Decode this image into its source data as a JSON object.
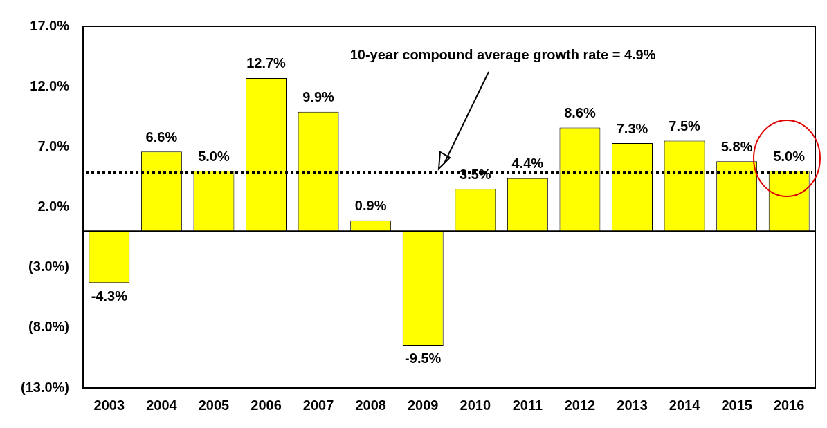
{
  "chart_data": {
    "type": "bar",
    "categories": [
      "2003",
      "2004",
      "2005",
      "2006",
      "2007",
      "2008",
      "2009",
      "2010",
      "2011",
      "2012",
      "2013",
      "2014",
      "2015",
      "2016"
    ],
    "values": [
      -4.3,
      6.6,
      5.0,
      12.7,
      9.9,
      0.9,
      -9.5,
      3.5,
      4.4,
      8.6,
      7.3,
      7.5,
      5.8,
      5.0
    ],
    "value_labels": [
      "-4.3%",
      "6.6%",
      "5.0%",
      "12.7%",
      "9.9%",
      "0.9%",
      "-9.5%",
      "3.5%",
      "4.4%",
      "8.6%",
      "7.3%",
      "7.5%",
      "5.8%",
      "5.0%"
    ],
    "color": "#ffff00",
    "ylim": [
      -13,
      17
    ],
    "yticks": [
      {
        "value": -13,
        "label": "(13.0%)"
      },
      {
        "value": -8,
        "label": "(8.0%)"
      },
      {
        "value": -3,
        "label": "(3.0%)"
      },
      {
        "value": 2,
        "label": "2.0%"
      },
      {
        "value": 7,
        "label": "7.0%"
      },
      {
        "value": 12,
        "label": "12.0%"
      },
      {
        "value": 17,
        "label": "17.0%"
      }
    ],
    "ref_lines": [
      {
        "axis": "y",
        "value": 4.9,
        "label": "10-year compound average growth rate = 4.9%",
        "color": "#000000",
        "line_style": "dotted"
      }
    ]
  }
}
